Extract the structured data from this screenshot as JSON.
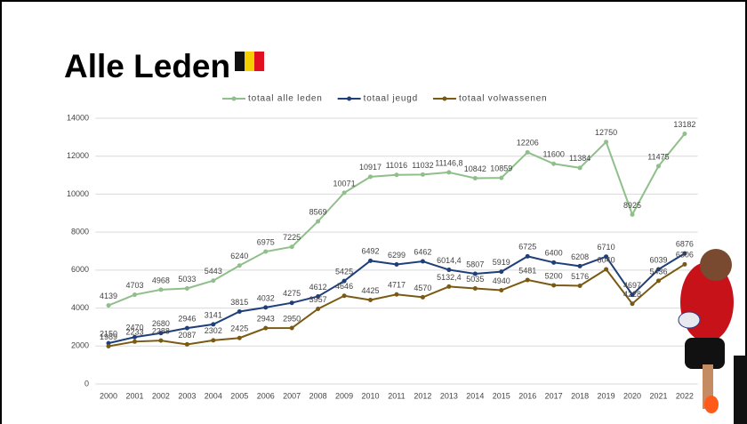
{
  "chart_data": {
    "type": "line",
    "title": "Alle Leden",
    "categories": [
      "2000",
      "2001",
      "2002",
      "2003",
      "2004",
      "2005",
      "2006",
      "2007",
      "2008",
      "2009",
      "2010",
      "2011",
      "2012",
      "2013",
      "2014",
      "2015",
      "2016",
      "2017",
      "2018",
      "2019",
      "2020",
      "2021",
      "2022"
    ],
    "series": [
      {
        "name": "totaal alle leden",
        "color": "#8fbf8a",
        "values": [
          4139,
          4703,
          4968,
          5033,
          5443,
          6240,
          6975,
          7225,
          8569,
          10071,
          10917,
          11016,
          11032,
          11146.8,
          10842,
          10859,
          12206,
          11600,
          11384,
          12750,
          8925,
          11475,
          13182
        ],
        "value_labels": [
          "4139",
          "4703",
          "4968",
          "5033",
          "5443",
          "6240",
          "6975",
          "7225",
          "8569",
          "10071",
          "10917",
          "11016",
          "11032",
          "11146,8",
          "10842",
          "10859",
          "12206",
          "11600",
          "11384",
          "12750",
          "8925",
          "11475",
          "13182"
        ]
      },
      {
        "name": "totaal jeugd",
        "color": "#1f3f7a",
        "values": [
          2150,
          2470,
          2680,
          2946,
          3141,
          3815,
          4032,
          4275,
          4612,
          5425,
          6492,
          6299,
          6462,
          6014.4,
          5807,
          5919,
          6725,
          6400,
          6208,
          6710,
          4697,
          6039,
          6876
        ],
        "value_labels": [
          "2150",
          "2470",
          "2680",
          "2946",
          "3141",
          "3815",
          "4032",
          "4275",
          "4612",
          "5425",
          "6492",
          "6299",
          "6462",
          "6014,4",
          "5807",
          "5919",
          "6725",
          "6400",
          "6208",
          "6710",
          "4697",
          "6039",
          "6876"
        ]
      },
      {
        "name": "totaal volwassenen",
        "color": "#7a5a12",
        "values": [
          1989,
          2233,
          2288,
          2087,
          2302,
          2425,
          2943,
          2950,
          3957,
          4646,
          4425,
          4717,
          4570,
          5132.4,
          5035,
          4940,
          5481,
          5200,
          5176,
          6040,
          4228,
          5436,
          6306
        ],
        "value_labels": [
          "1989",
          "2233",
          "2288",
          "2087",
          "2302",
          "2425",
          "2943",
          "2950",
          "3957",
          "4646",
          "4425",
          "4717",
          "4570",
          "5132,4",
          "5035",
          "4940",
          "5481",
          "5200",
          "5176",
          "6040",
          "4228",
          "5436",
          "6306"
        ]
      }
    ],
    "ylim": [
      0,
      14000
    ],
    "yticks": [
      0,
      2000,
      4000,
      6000,
      8000,
      10000,
      12000,
      14000
    ],
    "grid": true,
    "legend": "top"
  }
}
